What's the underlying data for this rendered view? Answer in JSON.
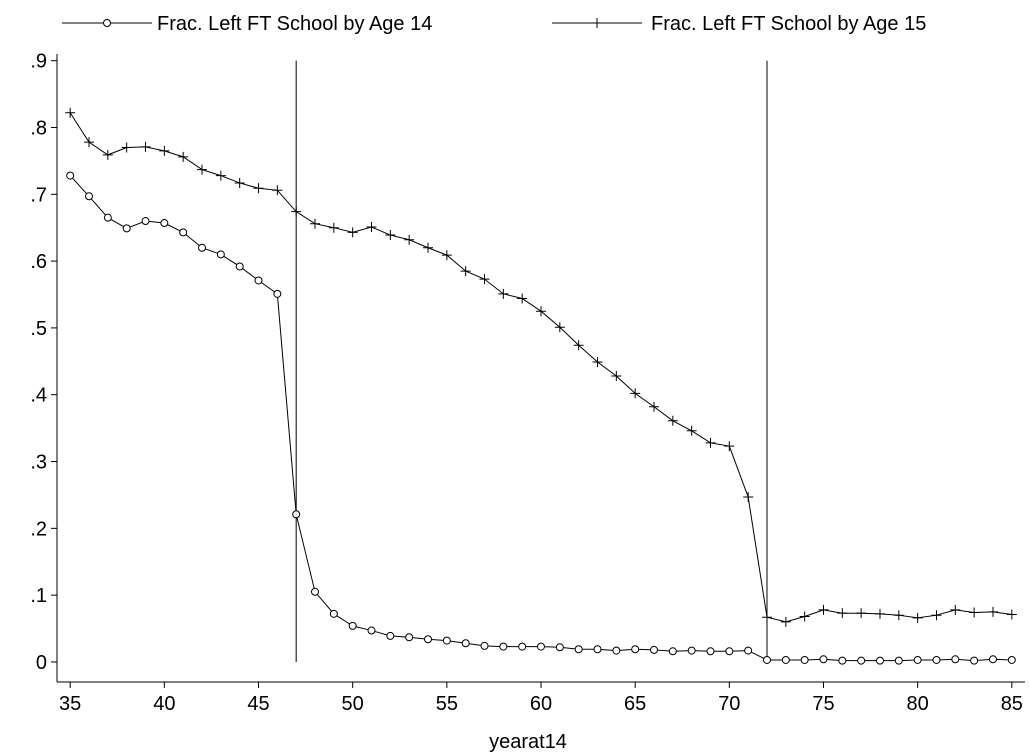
{
  "chart_data": {
    "type": "line",
    "title": "",
    "xlabel": "yearat14",
    "ylabel": "",
    "xlim": [
      34.3,
      85.7
    ],
    "ylim": [
      -0.03,
      0.91
    ],
    "xticks": [
      35,
      40,
      45,
      50,
      55,
      60,
      65,
      70,
      75,
      80,
      85
    ],
    "xtick_labels": [
      "35",
      "40",
      "45",
      "50",
      "55",
      "60",
      "65",
      "70",
      "75",
      "80",
      "85"
    ],
    "yticks": [
      0,
      0.1,
      0.2,
      0.3,
      0.4,
      0.5,
      0.6,
      0.7,
      0.8,
      0.9
    ],
    "ytick_labels": [
      "0",
      ".1",
      ".2",
      ".3",
      ".4",
      ".5",
      ".6",
      ".7",
      ".8",
      ".9"
    ],
    "grid": false,
    "legend_position": "top",
    "reference_lines_x": [
      47,
      72
    ],
    "x": [
      35,
      36,
      37,
      38,
      39,
      40,
      41,
      42,
      43,
      44,
      45,
      46,
      47,
      48,
      49,
      50,
      51,
      52,
      53,
      54,
      55,
      56,
      57,
      58,
      59,
      60,
      61,
      62,
      63,
      64,
      65,
      66,
      67,
      68,
      69,
      70,
      71,
      72,
      73,
      74,
      75,
      76,
      77,
      78,
      79,
      80,
      81,
      82,
      83,
      84,
      85
    ],
    "series": [
      {
        "name": "Frac. Left FT School by Age 14",
        "marker": "circle",
        "values": [
          0.728,
          0.697,
          0.665,
          0.649,
          0.66,
          0.657,
          0.643,
          0.62,
          0.61,
          0.592,
          0.571,
          0.551,
          0.221,
          0.105,
          0.072,
          0.054,
          0.047,
          0.039,
          0.037,
          0.034,
          0.032,
          0.028,
          0.024,
          0.023,
          0.023,
          0.023,
          0.022,
          0.019,
          0.019,
          0.017,
          0.019,
          0.018,
          0.016,
          0.017,
          0.016,
          0.016,
          0.017,
          0.003,
          0.003,
          0.003,
          0.004,
          0.002,
          0.002,
          0.002,
          0.002,
          0.003,
          0.003,
          0.004,
          0.002,
          0.004,
          0.003
        ]
      },
      {
        "name": "Frac. Left FT School by Age 15",
        "marker": "plus",
        "values": [
          0.822,
          0.778,
          0.759,
          0.77,
          0.771,
          0.765,
          0.756,
          0.737,
          0.728,
          0.717,
          0.709,
          0.706,
          0.674,
          0.656,
          0.65,
          0.643,
          0.651,
          0.639,
          0.632,
          0.62,
          0.609,
          0.585,
          0.573,
          0.551,
          0.544,
          0.525,
          0.501,
          0.474,
          0.449,
          0.428,
          0.402,
          0.382,
          0.361,
          0.346,
          0.328,
          0.323,
          0.247,
          0.067,
          0.06,
          0.068,
          0.078,
          0.073,
          0.073,
          0.072,
          0.07,
          0.066,
          0.07,
          0.078,
          0.074,
          0.075,
          0.071
        ]
      }
    ]
  }
}
